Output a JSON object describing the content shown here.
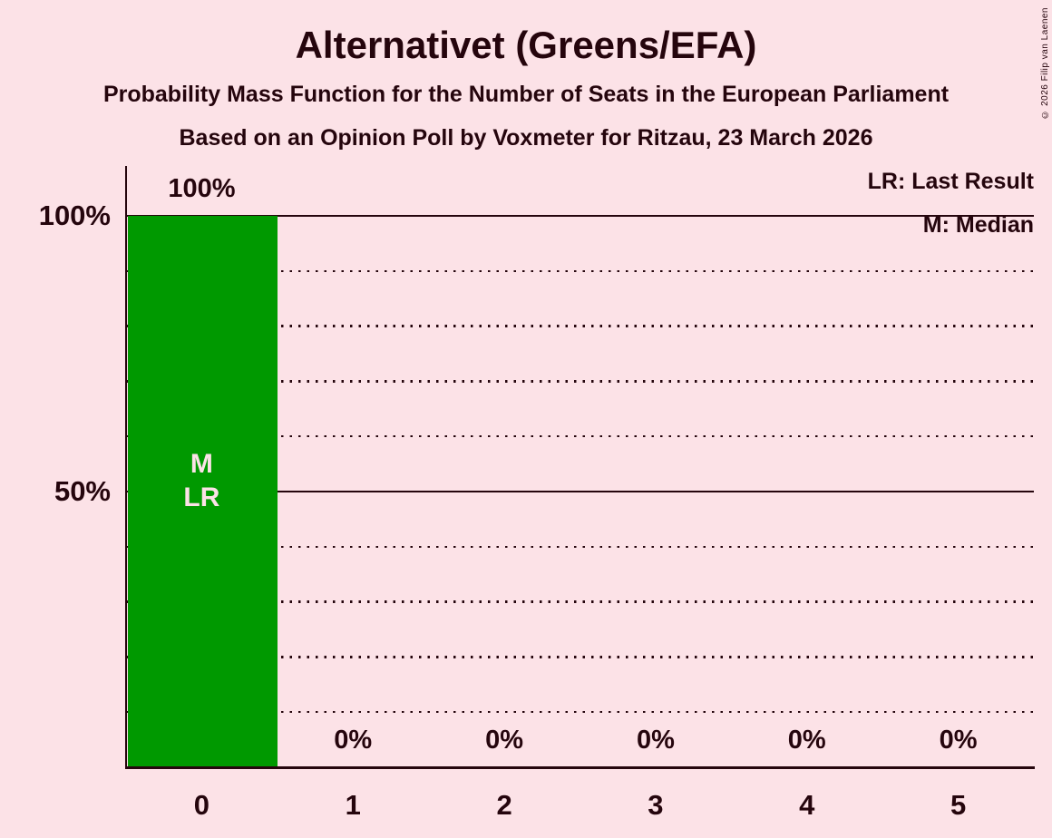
{
  "header": {
    "title": "Alternativet (Greens/EFA)",
    "subtitle1": "Probability Mass Function for the Number of Seats in the European Parliament",
    "subtitle2": "Based on an Opinion Poll by Voxmeter for Ritzau, 23 March 2026"
  },
  "legend": {
    "lr": "LR: Last Result",
    "m": "M: Median"
  },
  "copyright": "© 2026 Filip van Laenen",
  "colors": {
    "background": "#FCE2E7",
    "text": "#25050D",
    "grid": "#25050D",
    "bar": "#009900",
    "bar_label": "#FCE2E7"
  },
  "chart_data": {
    "type": "bar",
    "title": "Alternativet (Greens/EFA)",
    "categories": [
      "0",
      "1",
      "2",
      "3",
      "4",
      "5"
    ],
    "values": [
      100,
      0,
      0,
      0,
      0,
      0
    ],
    "value_labels": [
      "100%",
      "0%",
      "0%",
      "0%",
      "0%",
      "0%"
    ],
    "bar_annotations": [
      [
        "M",
        "LR"
      ],
      [],
      [],
      [],
      [],
      []
    ],
    "median_seats": 0,
    "last_result_seats": 0,
    "ylim": [
      0,
      100
    ],
    "yticks": [
      {
        "value": 100,
        "label": "100%"
      },
      {
        "value": 50,
        "label": "50%"
      }
    ],
    "gridlines": {
      "solid": [
        100,
        50
      ],
      "dotted": [
        90,
        80,
        70,
        60,
        40,
        30,
        20,
        10
      ]
    },
    "legend_position": "top-right",
    "grid": "on"
  }
}
